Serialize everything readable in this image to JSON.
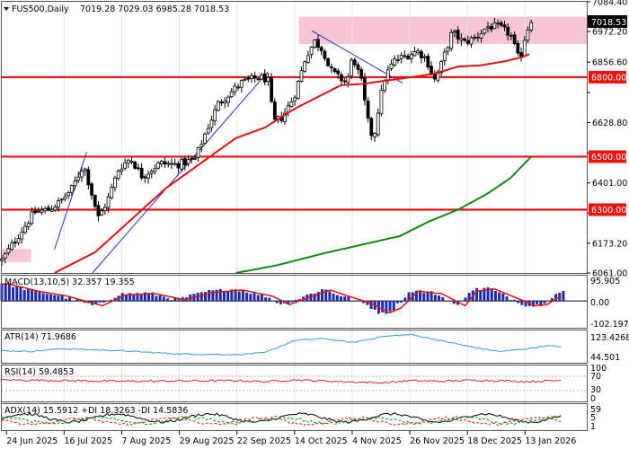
{
  "header": {
    "symbol": "FUS500,Daily",
    "ohlc": "7019.28 7029.03 6985.28 7018.53"
  },
  "chart_data": {
    "type": "candlestick",
    "price": {
      "ylim": [
        6061,
        7084.4
      ],
      "y_ticks": [
        7084.4,
        6972.2,
        6856.6,
        6742.0,
        6628.8,
        6514.2,
        6401.0,
        6287.6,
        6173.2,
        6061.0
      ],
      "y_tick_labels": [
        "7084.40",
        "6972.20",
        "6856.60",
        "",
        "6628.80",
        "",
        "6401.00",
        "",
        "6173.20",
        "6061.00"
      ],
      "current_price_label": "7018.53",
      "levels": [
        {
          "label": "6800.00",
          "value": 6800
        },
        {
          "label": "6500.00",
          "value": 6500
        },
        {
          "label": "6300.00",
          "value": 6300
        }
      ],
      "zones": [
        {
          "y_range": [
            6925,
            7028
          ],
          "x_range": [
            0.5078,
            1.0
          ]
        },
        {
          "y_range": [
            6102,
            6152
          ],
          "x_range": [
            0.0,
            0.05
          ]
        }
      ],
      "trend_lines": [
        {
          "points": [
            [
              0.09,
              6150
            ],
            [
              0.145,
              6518
            ]
          ]
        },
        {
          "points": [
            [
              0.155,
              6061
            ],
            [
              0.455,
              6820
            ]
          ]
        },
        {
          "points": [
            [
              0.53,
              6975
            ],
            [
              0.685,
              6778
            ]
          ]
        }
      ],
      "ma_red": {
        "color": "#e01010",
        "knots": [
          [
            0.09,
            6061
          ],
          [
            0.16,
            6140
          ],
          [
            0.28,
            6380
          ],
          [
            0.4,
            6570
          ],
          [
            0.45,
            6610
          ],
          [
            0.5,
            6680
          ],
          [
            0.58,
            6770
          ],
          [
            0.62,
            6775
          ],
          [
            0.64,
            6782
          ],
          [
            0.7,
            6800
          ],
          [
            0.74,
            6813
          ],
          [
            0.78,
            6840
          ],
          [
            0.82,
            6845
          ],
          [
            0.86,
            6860
          ],
          [
            0.89,
            6876
          ],
          [
            0.905,
            6890
          ]
        ]
      },
      "ma_green": {
        "color": "#118811",
        "knots": [
          [
            0.4,
            6061
          ],
          [
            0.47,
            6090
          ],
          [
            0.55,
            6135
          ],
          [
            0.63,
            6175
          ],
          [
            0.68,
            6200
          ],
          [
            0.73,
            6255
          ],
          [
            0.78,
            6300
          ],
          [
            0.83,
            6360
          ],
          [
            0.87,
            6420
          ],
          [
            0.905,
            6500
          ]
        ]
      },
      "candle_knots": [
        [
          0.0,
          6110
        ],
        [
          0.04,
          6240
        ],
        [
          0.055,
          6290
        ],
        [
          0.08,
          6300
        ],
        [
          0.1,
          6330
        ],
        [
          0.12,
          6380
        ],
        [
          0.14,
          6470
        ],
        [
          0.165,
          6270
        ],
        [
          0.18,
          6330
        ],
        [
          0.2,
          6455
        ],
        [
          0.22,
          6495
        ],
        [
          0.24,
          6425
        ],
        [
          0.27,
          6475
        ],
        [
          0.3,
          6470
        ],
        [
          0.33,
          6490
        ],
        [
          0.35,
          6600
        ],
        [
          0.37,
          6700
        ],
        [
          0.39,
          6740
        ],
        [
          0.41,
          6780
        ],
        [
          0.44,
          6800
        ],
        [
          0.455,
          6790
        ],
        [
          0.465,
          6630
        ],
        [
          0.48,
          6650
        ],
        [
          0.5,
          6730
        ],
        [
          0.52,
          6880
        ],
        [
          0.535,
          6935
        ],
        [
          0.55,
          6900
        ],
        [
          0.56,
          6830
        ],
        [
          0.575,
          6800
        ],
        [
          0.59,
          6780
        ],
        [
          0.6,
          6880
        ],
        [
          0.615,
          6780
        ],
        [
          0.625,
          6640
        ],
        [
          0.635,
          6560
        ],
        [
          0.645,
          6700
        ],
        [
          0.655,
          6800
        ],
        [
          0.67,
          6860
        ],
        [
          0.69,
          6880
        ],
        [
          0.71,
          6900
        ],
        [
          0.725,
          6870
        ],
        [
          0.74,
          6790
        ],
        [
          0.75,
          6840
        ],
        [
          0.77,
          6970
        ],
        [
          0.79,
          6930
        ],
        [
          0.81,
          6950
        ],
        [
          0.83,
          6990
        ],
        [
          0.85,
          6990
        ],
        [
          0.87,
          6960
        ],
        [
          0.88,
          6890
        ],
        [
          0.885,
          6860
        ],
        [
          0.895,
          6960
        ],
        [
          0.905,
          7018
        ]
      ]
    },
    "macd": {
      "label": "MACD(13,10,5) 32.357 19.355",
      "ylim": [
        -102.197,
        95.905
      ],
      "y_tick_labels": [
        "95.905",
        "0.00",
        "-102.197"
      ]
    },
    "atr": {
      "label": "ATR(14) 71.9686",
      "y_tick_labels": [
        "123.4268",
        "44.501"
      ],
      "color": "#3399dd"
    },
    "rsi": {
      "label": "RSI(14) 59.4853",
      "y_tick_labels": [
        "100",
        "70",
        "30",
        "0"
      ],
      "color": "#dd2222"
    },
    "adx": {
      "label": "ADX(14) 15.5912 +DI 18.3263 -DI 14.5836",
      "y_tick_labels": [
        "59",
        "5",
        "1"
      ]
    },
    "x_tick_labels": [
      "24 Jun 2025",
      "16 Jul 2025",
      "7 Aug 2025",
      "29 Aug 2025",
      "22 Sep 2025",
      "14 Oct 2025",
      "4 Nov 2025",
      "26 Nov 2025",
      "18 Dec 2025",
      "13 Jan 2026"
    ]
  }
}
